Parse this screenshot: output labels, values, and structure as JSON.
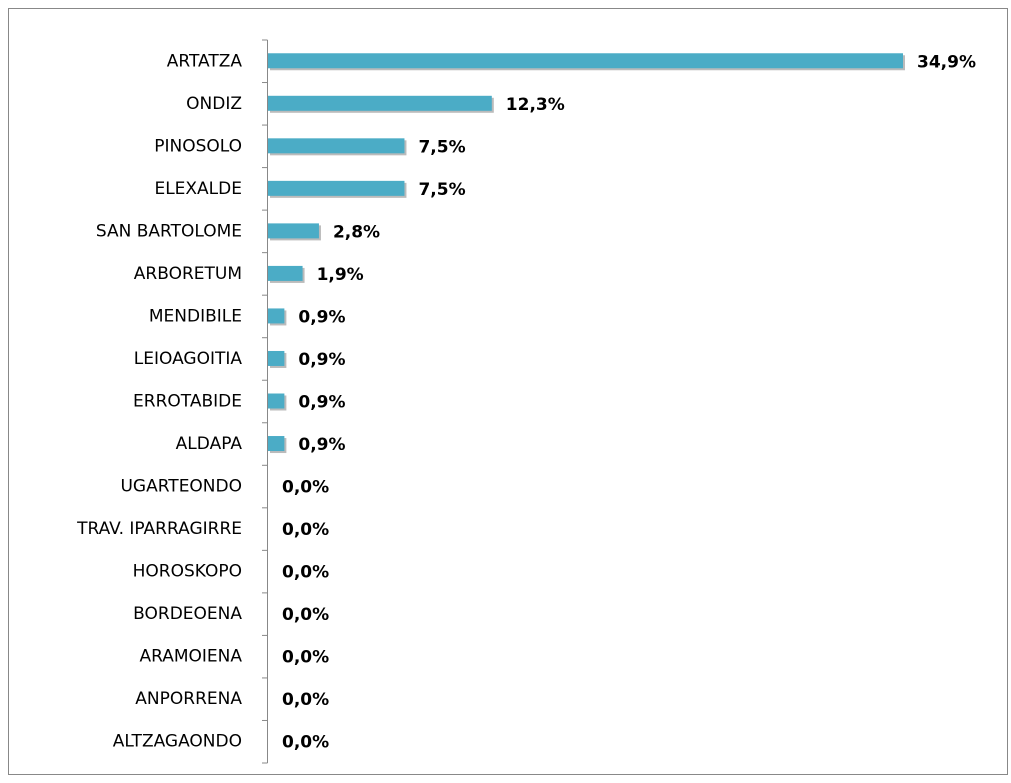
{
  "chart_data": {
    "type": "bar",
    "orientation": "horizontal",
    "categories": [
      "ARTATZA",
      "ONDIZ",
      "PINOSOLO",
      "ELEXALDE",
      "SAN BARTOLOME",
      "ARBORETUM",
      "MENDIBILE",
      "LEIOAGOITIA",
      "ERROTABIDE",
      "ALDAPA",
      "UGARTEONDO",
      "TRAV. IPARRAGIRRE",
      "HOROSKOPO",
      "BORDEOENA",
      "ARAMOIENA",
      "ANPORRENA",
      "ALTZAGAONDO"
    ],
    "values": [
      34.9,
      12.3,
      7.5,
      7.5,
      2.8,
      1.9,
      0.9,
      0.9,
      0.9,
      0.9,
      0,
      0,
      0,
      0,
      0,
      0,
      0
    ],
    "value_labels": [
      "34,9%",
      "12,3%",
      "7,5%",
      "7,5%",
      "2,8%",
      "1,9%",
      "0,9%",
      "0,9%",
      "0,9%",
      "0,9%",
      "0,0%",
      "0,0%",
      "0,0%",
      "0,0%",
      "0,0%",
      "0,0%",
      "0,0%"
    ],
    "color": "#4bacc6"
  }
}
